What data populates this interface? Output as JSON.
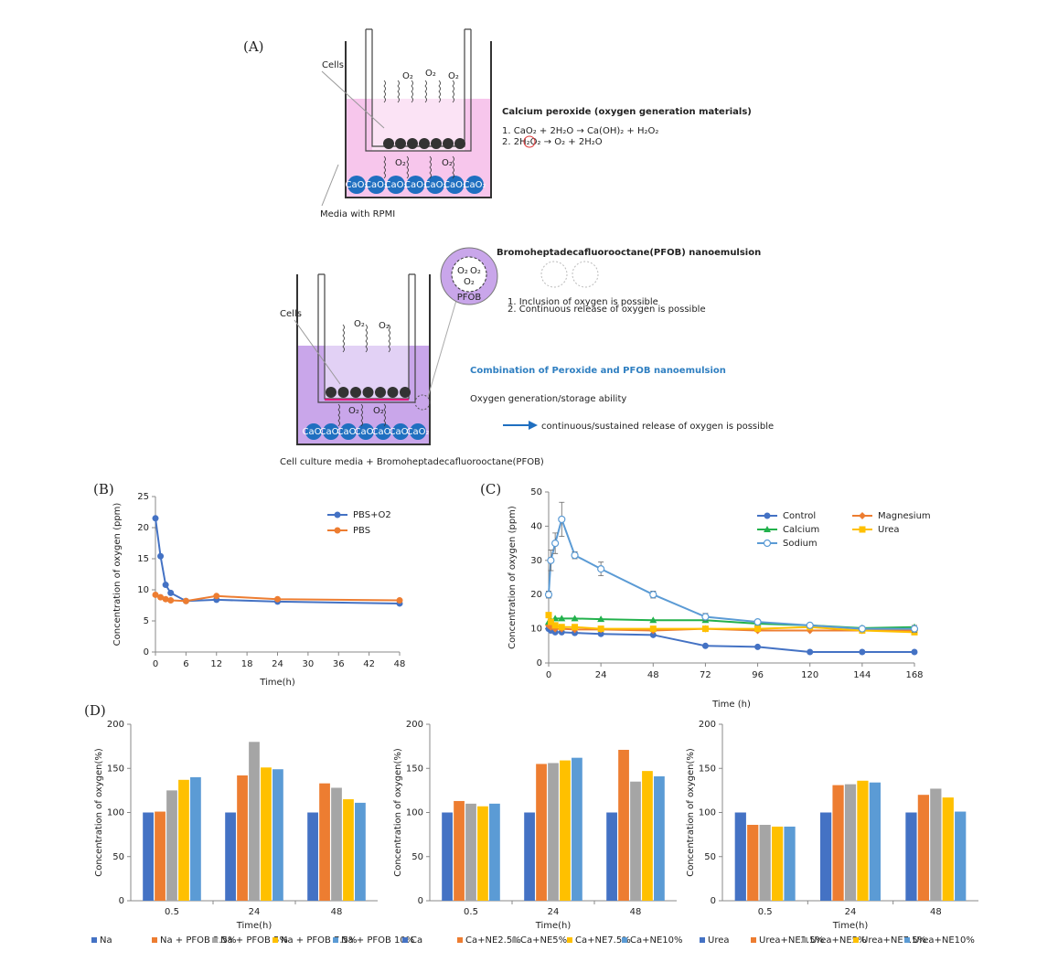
{
  "panels": [
    "(A)",
    "(B)",
    "(C)",
    "(D)"
  ],
  "diagram_top": {
    "cells": "Cells",
    "media": "Media with RPMI",
    "o2": "O₂",
    "bead": "CaO₂",
    "title": "Calcium peroxide (oxygen generation materials)",
    "equations": [
      "1. CaO₂ + 2H₂O → Ca(OH)₂ + H₂O₂",
      "2. 2H₂O₂ → O₂ + 2H₂O"
    ]
  },
  "diagram_bottom": {
    "cells": "Cells",
    "media": "Cell culture media + Bromoheptadecafluorooctane(PFOB)",
    "o2": "O₂",
    "bead": "CaO₂",
    "nanoemulsion_title": "Bromoheptadecafluorooctane(PFOB) nanoemulsion",
    "pfob": "PFOB",
    "notes": [
      "1. Inclusion of oxygen is possible",
      "2. Continuous release of oxygen is possible"
    ],
    "headline": "Combination of Peroxide and PFOB nanoemulsion",
    "ability": "Oxygen generation/storage ability",
    "arrow_text": "continuous/sustained release of oxygen is possible"
  },
  "chart_data": [
    {
      "type": "line",
      "x_label": "Time(h)",
      "y_label": "Concentration of oxygen (ppm)",
      "x": [
        0,
        1,
        2,
        3,
        6,
        12,
        24,
        48
      ],
      "xlim": [
        0,
        48
      ],
      "xticks": [
        0,
        6,
        12,
        18,
        24,
        30,
        36,
        42,
        48
      ],
      "ylim": [
        0,
        25
      ],
      "yticks": [
        0,
        5,
        10,
        15,
        20,
        25
      ],
      "legend": "upper right",
      "series": [
        {
          "name": "PBS+O2",
          "color": "#4472c4",
          "marker": "circle",
          "values": [
            21.5,
            15.4,
            10.8,
            9.5,
            8.2,
            8.4,
            8.1,
            7.8
          ]
        },
        {
          "name": "PBS",
          "color": "#ed7d31",
          "marker": "circle",
          "values": [
            9.2,
            8.8,
            8.5,
            8.3,
            8.2,
            9.0,
            8.5,
            8.3
          ]
        }
      ]
    },
    {
      "type": "line",
      "x_label": "Time (h)",
      "y_label": "Concentration of oxygen (ppm)",
      "x": [
        0,
        1,
        3,
        6,
        12,
        24,
        48,
        72,
        96,
        120,
        144,
        168
      ],
      "xlim": [
        0,
        168
      ],
      "xticks": [
        0,
        24,
        48,
        72,
        96,
        120,
        144,
        168
      ],
      "ylim": [
        0,
        50
      ],
      "yticks": [
        0,
        10,
        20,
        30,
        40,
        50
      ],
      "legend": "upper right",
      "series": [
        {
          "name": "Control",
          "color": "#4472c4",
          "marker": "circle",
          "values": [
            10,
            9.5,
            9,
            9,
            8.8,
            8.5,
            8.2,
            5,
            4.7,
            3.2,
            3.2,
            3.2
          ]
        },
        {
          "name": "Magnesium",
          "color": "#ed7d31",
          "marker": "diamond",
          "values": [
            11,
            10.5,
            10,
            10,
            9.8,
            9.8,
            9.5,
            10,
            9.5,
            9.5,
            9.5,
            9.5
          ]
        },
        {
          "name": "Calcium",
          "color": "#22b14c",
          "marker": "triangle",
          "values": [
            12,
            12.5,
            13,
            13,
            13,
            12.8,
            12.5,
            12.5,
            11.5,
            11,
            10.2,
            10.5
          ]
        },
        {
          "name": "Urea",
          "color": "#ffc000",
          "marker": "square",
          "values": [
            14,
            12,
            11,
            10.5,
            10.5,
            10,
            10,
            10,
            10,
            10.5,
            9.5,
            9
          ]
        },
        {
          "name": "Sodium",
          "color": "#5b9bd5",
          "marker": "circle-open",
          "values": [
            20,
            30,
            35,
            42,
            31.5,
            27.5,
            20,
            13.5,
            12,
            11,
            10,
            10
          ],
          "errors": [
            1,
            3,
            3,
            5,
            1,
            2,
            1,
            1,
            0.5,
            0.5,
            0.5,
            1
          ]
        }
      ]
    },
    {
      "type": "bar",
      "x_label": "Time(h)",
      "y_label": "Concentration of oxygen(%)",
      "categories": [
        "0.5",
        "24",
        "48"
      ],
      "ylim": [
        0,
        200
      ],
      "yticks": [
        0,
        50,
        100,
        150,
        200
      ],
      "legend": "bottom",
      "series": [
        {
          "name": "Na",
          "color": "#4472c4",
          "values": [
            100,
            100,
            100
          ]
        },
        {
          "name": "Na + PFOB 2.5%",
          "color": "#ed7d31",
          "values": [
            101,
            142,
            133
          ]
        },
        {
          "name": "Na + PFOB 5%",
          "color": "#a5a5a5",
          "values": [
            125,
            180,
            128
          ]
        },
        {
          "name": "Na + PFOB 7.5%",
          "color": "#ffc000",
          "values": [
            137,
            151,
            115
          ]
        },
        {
          "name": "Na + PFOB 10%",
          "color": "#5b9bd5",
          "values": [
            140,
            149,
            111
          ]
        }
      ]
    },
    {
      "type": "bar",
      "x_label": "Time(h)",
      "y_label": "Concentration of oxygen(%)",
      "categories": [
        "0.5",
        "24",
        "48"
      ],
      "ylim": [
        0,
        200
      ],
      "yticks": [
        0,
        50,
        100,
        150,
        200
      ],
      "legend": "bottom",
      "series": [
        {
          "name": "Ca",
          "color": "#4472c4",
          "values": [
            100,
            100,
            100
          ]
        },
        {
          "name": "Ca+NE2.5%",
          "color": "#ed7d31",
          "values": [
            113,
            155,
            171
          ]
        },
        {
          "name": "Ca+NE5%",
          "color": "#a5a5a5",
          "values": [
            110,
            156,
            135
          ]
        },
        {
          "name": "Ca+NE7.5%",
          "color": "#ffc000",
          "values": [
            107,
            159,
            147
          ]
        },
        {
          "name": "Ca+NE10%",
          "color": "#5b9bd5",
          "values": [
            110,
            162,
            141
          ]
        }
      ]
    },
    {
      "type": "bar",
      "x_label": "Time(h)",
      "y_label": "Concentration of oxygen(%)",
      "categories": [
        "0.5",
        "24",
        "48"
      ],
      "ylim": [
        0,
        200
      ],
      "yticks": [
        0,
        50,
        100,
        150,
        200
      ],
      "legend": "bottom",
      "series": [
        {
          "name": "Urea",
          "color": "#4472c4",
          "values": [
            100,
            100,
            100
          ]
        },
        {
          "name": "Urea+NE2.5%",
          "color": "#ed7d31",
          "values": [
            86,
            131,
            120
          ]
        },
        {
          "name": "Urea+NE5%",
          "color": "#a5a5a5",
          "values": [
            86,
            132,
            127
          ]
        },
        {
          "name": "Urea+NE7.5%",
          "color": "#ffc000",
          "values": [
            84,
            136,
            117
          ]
        },
        {
          "name": "Urea+NE10%",
          "color": "#5b9bd5",
          "values": [
            84,
            134,
            101
          ]
        }
      ]
    }
  ]
}
